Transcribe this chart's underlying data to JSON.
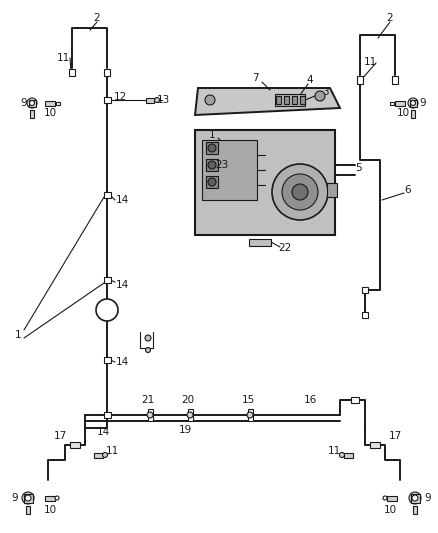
{
  "bg_color": "#ffffff",
  "line_color": "#1a1a1a",
  "fig_width": 4.38,
  "fig_height": 5.33,
  "dpi": 100,
  "lw_tube": 1.4,
  "lw_thin": 0.8,
  "fs_label": 7.5
}
